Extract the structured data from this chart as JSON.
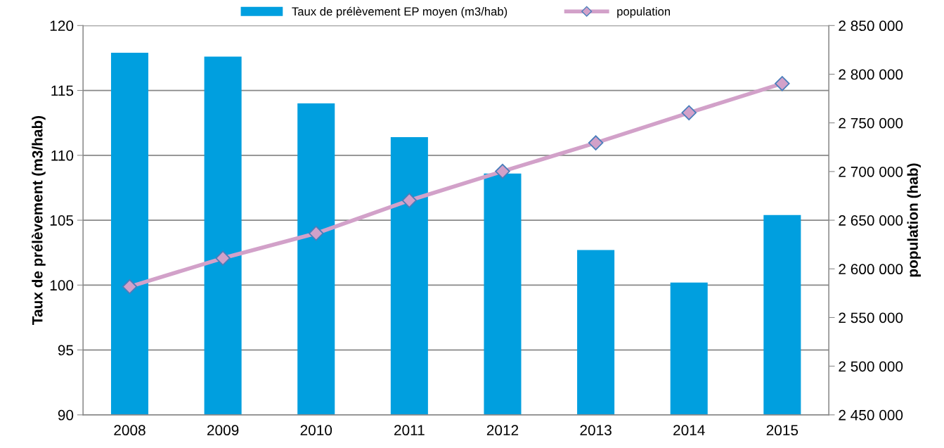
{
  "chart_data": {
    "type": "bar",
    "categories": [
      "2008",
      "2009",
      "2010",
      "2011",
      "2012",
      "2013",
      "2014",
      "2015"
    ],
    "series": [
      {
        "name": "Taux de prélèvement EP moyen (m3/hab)",
        "color": "#009fdf",
        "values": [
          117.9,
          117.6,
          114.0,
          111.4,
          108.6,
          102.7,
          100.2,
          105.4
        ]
      },
      {
        "name": "population",
        "type": "line",
        "axis": "y2",
        "color": "#d2a1c9",
        "marker": "diamond",
        "values": [
          2581700,
          2611000,
          2636500,
          2670300,
          2700200,
          2729500,
          2760400,
          2790400
        ]
      }
    ],
    "ylabel": "Taux de prélèvement (m3/hab)",
    "y2label": "population (hab)",
    "ylim": [
      90,
      120
    ],
    "yticks": [
      90,
      95,
      100,
      105,
      110,
      115,
      120
    ],
    "y2lim": [
      2450000,
      2850000
    ],
    "y2ticks": [
      {
        "value": 2450000,
        "label": "2 450 000"
      },
      {
        "value": 2500000,
        "label": "2 500 000"
      },
      {
        "value": 2550000,
        "label": "2 550 000"
      },
      {
        "value": 2600000,
        "label": "2 600 000"
      },
      {
        "value": 2650000,
        "label": "2 650 000"
      },
      {
        "value": 2700000,
        "label": "2 700 000"
      },
      {
        "value": 2750000,
        "label": "2 750 000"
      },
      {
        "value": 2800000,
        "label": "2 800 000"
      },
      {
        "value": 2850000,
        "label": "2 850 000"
      }
    ],
    "grid": "y",
    "legend": "top"
  }
}
